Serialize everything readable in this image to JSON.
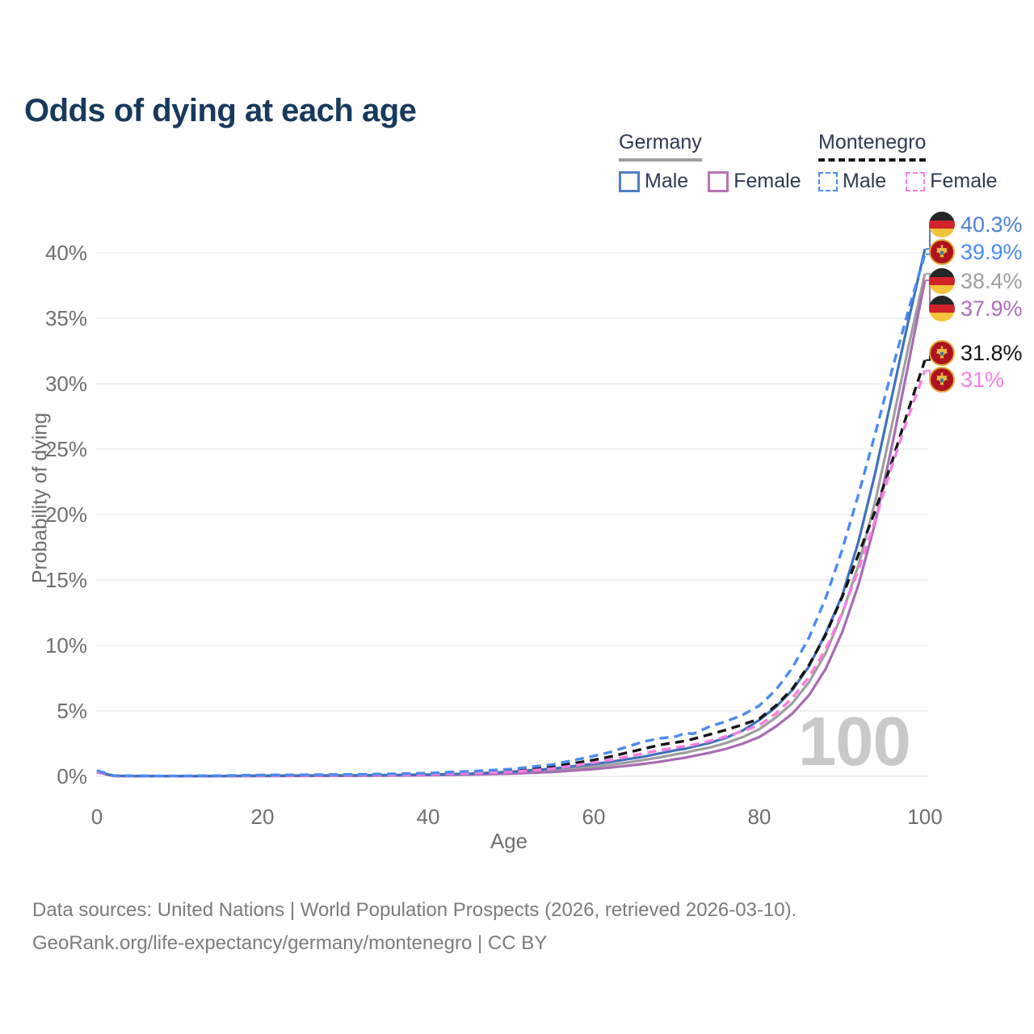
{
  "title": "Odds of dying at each age",
  "watermark_age": "100",
  "legend": {
    "groups": [
      {
        "label": "Germany",
        "underline_style": "solid",
        "underline_color": "#9e9e9e",
        "items": [
          {
            "label": "Male",
            "color": "#4e7fc0",
            "dashed": false
          },
          {
            "label": "Female",
            "color": "#b873b5",
            "dashed": false
          }
        ]
      },
      {
        "label": "Montenegro",
        "underline_style": "dashed",
        "underline_color": "#141414",
        "items": [
          {
            "label": "Male",
            "color": "#4b8bf0",
            "dashed": true
          },
          {
            "label": "Female",
            "color": "#fb7de2",
            "dashed": true
          }
        ]
      }
    ]
  },
  "footer": {
    "line1": "Data sources: United Nations | World Population Prospects (2026, retrieved 2026-03-10).",
    "line2": "GeoRank.org/life-expectancy/germany/montenegro | CC BY"
  },
  "chart_data": {
    "type": "line",
    "title": "Odds of dying at each age",
    "xlabel": "Age",
    "ylabel": "Probability of dying",
    "xlim": [
      0,
      100
    ],
    "ylim_percent": [
      0,
      42
    ],
    "grid": "horizontal",
    "legend_position": "top-right",
    "x_axis": {
      "label": "Age",
      "ticks": [
        {
          "v": 0,
          "label": "0"
        },
        {
          "v": 20,
          "label": "20"
        },
        {
          "v": 40,
          "label": "40"
        },
        {
          "v": 60,
          "label": "60"
        },
        {
          "v": 80,
          "label": "80"
        },
        {
          "v": 100,
          "label": "100"
        }
      ]
    },
    "y_axis": {
      "label": "Probability of dying",
      "ticks": [
        {
          "v": 0,
          "label": "0%"
        },
        {
          "v": 5,
          "label": "5%"
        },
        {
          "v": 10,
          "label": "10%"
        },
        {
          "v": 15,
          "label": "15%"
        },
        {
          "v": 20,
          "label": "20%"
        },
        {
          "v": 25,
          "label": "25%"
        },
        {
          "v": 30,
          "label": "30%"
        },
        {
          "v": 35,
          "label": "35%"
        },
        {
          "v": 40,
          "label": "40%"
        }
      ]
    },
    "ages": [
      0,
      2,
      5,
      10,
      15,
      20,
      25,
      30,
      35,
      40,
      45,
      50,
      55,
      60,
      62,
      64,
      66,
      68,
      70,
      71,
      72,
      74,
      76,
      78,
      80,
      82,
      84,
      86,
      88,
      90,
      92,
      94,
      96,
      98,
      100
    ],
    "series": [
      {
        "id": "germany-male",
        "country": "Germany",
        "sex": "male",
        "color": "#3f72ba",
        "dashed": false,
        "z": 3,
        "label_row": 0,
        "end_label": {
          "text": "40.3%",
          "color": "#4e80d4",
          "flag": "germany"
        },
        "end_value_percent": 40.3,
        "values": [
          0.35,
          0.04,
          0.02,
          0.01,
          0.02,
          0.05,
          0.06,
          0.07,
          0.09,
          0.13,
          0.2,
          0.35,
          0.58,
          0.95,
          1.1,
          1.3,
          1.5,
          1.75,
          2.0,
          2.1,
          2.25,
          2.55,
          2.95,
          3.5,
          4.3,
          5.3,
          6.6,
          8.4,
          10.9,
          13.8,
          18.0,
          23.2,
          29.0,
          34.8,
          40.3
        ]
      },
      {
        "id": "germany-female",
        "country": "Germany",
        "sex": "female",
        "color": "#a76cb2",
        "dashed": false,
        "z": 2,
        "label_row": 3,
        "end_label": {
          "text": "37.9%",
          "color": "#ad6fb8",
          "flag": "germany"
        },
        "end_value_percent": 37.9,
        "values": [
          0.3,
          0.03,
          0.015,
          0.008,
          0.015,
          0.025,
          0.03,
          0.04,
          0.055,
          0.08,
          0.13,
          0.2,
          0.33,
          0.55,
          0.67,
          0.8,
          0.95,
          1.12,
          1.32,
          1.42,
          1.55,
          1.8,
          2.1,
          2.5,
          3.0,
          3.8,
          4.8,
          6.2,
          8.2,
          11.0,
          14.7,
          19.4,
          25.2,
          31.5,
          37.9
        ]
      },
      {
        "id": "germany-all",
        "country": "Germany",
        "sex": "all",
        "color": "#9e9e9e",
        "dashed": false,
        "z": 1,
        "label_row": 2,
        "end_label": {
          "text": "38.4%",
          "color": "#9e9e9e",
          "flag": "germany"
        },
        "end_value_percent": 38.4,
        "values": [
          0.33,
          0.035,
          0.018,
          0.009,
          0.018,
          0.04,
          0.045,
          0.055,
          0.07,
          0.1,
          0.16,
          0.28,
          0.46,
          0.75,
          0.88,
          1.05,
          1.25,
          1.45,
          1.7,
          1.8,
          1.95,
          2.2,
          2.55,
          3.0,
          3.6,
          4.5,
          5.6,
          7.2,
          9.4,
          12.4,
          16.2,
          21.0,
          26.8,
          32.8,
          38.4
        ]
      },
      {
        "id": "montenegro-male",
        "country": "Montenegro",
        "sex": "male",
        "color": "#4b8bf0",
        "dashed": true,
        "z": 6,
        "label_row": 1,
        "end_label": {
          "text": "39.9%",
          "color": "#4b8bf0",
          "flag": "montenegro"
        },
        "end_value_percent": 39.9,
        "values": [
          0.45,
          0.05,
          0.03,
          0.025,
          0.05,
          0.1,
          0.12,
          0.14,
          0.18,
          0.25,
          0.38,
          0.55,
          0.9,
          1.55,
          1.85,
          2.25,
          2.65,
          2.9,
          3.05,
          3.3,
          3.25,
          3.8,
          4.2,
          4.7,
          5.4,
          6.6,
          8.3,
          10.6,
          13.6,
          17.3,
          21.6,
          26.2,
          31.0,
          35.6,
          39.9
        ]
      },
      {
        "id": "montenegro-female",
        "country": "Montenegro",
        "sex": "female",
        "color": "#fb7de2",
        "dashed": true,
        "z": 5,
        "label_row": 5,
        "end_label": {
          "text": "31%",
          "color": "#fb7de2",
          "flag": "montenegro"
        },
        "end_value_percent": 31.0,
        "values": [
          0.35,
          0.04,
          0.02,
          0.015,
          0.03,
          0.055,
          0.065,
          0.08,
          0.1,
          0.15,
          0.22,
          0.33,
          0.58,
          1.05,
          1.25,
          1.5,
          1.75,
          2.0,
          2.2,
          2.3,
          2.4,
          2.7,
          3.05,
          3.45,
          3.9,
          4.8,
          6.0,
          7.6,
          9.7,
          12.5,
          15.8,
          19.6,
          23.7,
          27.5,
          31.0
        ]
      },
      {
        "id": "montenegro-all",
        "country": "Montenegro",
        "sex": "all",
        "color": "#141414",
        "dashed": true,
        "z": 4,
        "label_row": 4,
        "end_label": {
          "text": "31.8%",
          "color": "#141414",
          "flag": "montenegro"
        },
        "end_value_percent": 31.8,
        "values": [
          0.4,
          0.045,
          0.025,
          0.02,
          0.04,
          0.08,
          0.095,
          0.11,
          0.14,
          0.2,
          0.3,
          0.42,
          0.72,
          1.25,
          1.5,
          1.8,
          2.1,
          2.4,
          2.6,
          2.7,
          2.85,
          3.2,
          3.55,
          3.95,
          4.4,
          5.4,
          6.7,
          8.5,
          10.8,
          13.7,
          17.0,
          20.3,
          24.0,
          28.0,
          31.8
        ]
      }
    ]
  }
}
